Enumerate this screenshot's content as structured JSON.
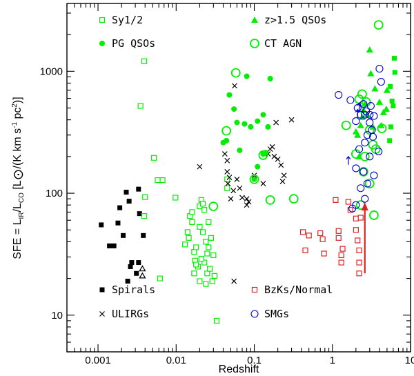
{
  "chart_data": {
    "type": "scatter",
    "title": "",
    "xlabel": "Redshift",
    "ylabel": "SFE  =  L_IR/L'_CO  [L_sun/(K km s^-1 pc^2)]",
    "ylabel_parts": {
      "prefix": "SFE  =  L",
      "sub1": "IR",
      "mid": "/L",
      "sub2": "CO",
      "suffix": "  [L",
      "unit": "/(K km s",
      "exp1": "-1",
      "pc": " pc",
      "exp2": "2",
      "close": ")]"
    },
    "x_scale": "log",
    "y_scale": "log",
    "xlim": [
      0.0004,
      10
    ],
    "ylim": [
      5,
      3600
    ],
    "x_ticks": [
      0.001,
      0.01,
      0.1,
      1,
      10
    ],
    "x_tick_labels": [
      "0.001",
      "0.01",
      "0.1",
      "1",
      "10"
    ],
    "y_ticks": [
      10,
      100,
      1000
    ],
    "y_tick_labels": [
      "10",
      "100",
      "1000"
    ],
    "colors": {
      "green": "#00ee00",
      "black": "#000000",
      "red": "#dd2222",
      "blue": "#0000cc"
    },
    "legend": [
      {
        "label": "Sy1/2",
        "marker": "open-square",
        "color": "#00ee00"
      },
      {
        "label": "z>1.5 QSOs",
        "marker": "filled-triangle",
        "color": "#00ee00"
      },
      {
        "label": "PG QSOs",
        "marker": "filled-circle",
        "color": "#00ee00"
      },
      {
        "label": "CT AGN",
        "marker": "big-open-circle",
        "color": "#00ee00"
      },
      {
        "label": "Spirals",
        "marker": "filled-square",
        "color": "#000000"
      },
      {
        "label": "BzKs/Normal",
        "marker": "open-square",
        "color": "#dd2222"
      },
      {
        "label": "ULIRGs",
        "marker": "cross",
        "color": "#000000"
      },
      {
        "label": "SMGs",
        "marker": "open-circle",
        "color": "#0000cc"
      }
    ],
    "series": [
      {
        "name": "Spirals",
        "marker": "filled-square",
        "color": "#000000",
        "points": [
          [
            0.0011,
            55
          ],
          [
            0.0014,
            37
          ],
          [
            0.0016,
            37
          ],
          [
            0.0018,
            57
          ],
          [
            0.0019,
            76
          ],
          [
            0.0021,
            45
          ],
          [
            0.0023,
            102
          ],
          [
            0.0025,
            86
          ],
          [
            0.0026,
            25
          ],
          [
            0.0027,
            27
          ],
          [
            0.0024,
            19
          ],
          [
            0.0033,
            108
          ],
          [
            0.0034,
            68
          ],
          [
            0.0031,
            22
          ],
          [
            0.0038,
            45
          ],
          [
            0.0033,
            27
          ]
        ]
      },
      {
        "name": "Spirals (lower limits)",
        "marker": "open-triangle",
        "color": "#000000",
        "points": [
          [
            0.0037,
            24
          ],
          [
            0.0037,
            21
          ]
        ]
      },
      {
        "name": "Sy1/2",
        "marker": "open-square",
        "color": "#00ee00",
        "points": [
          [
            0.0039,
            1210
          ],
          [
            0.0035,
            520
          ],
          [
            0.0052,
            195
          ],
          [
            0.0058,
            128
          ],
          [
            0.0067,
            128
          ],
          [
            0.004,
            93
          ],
          [
            0.0039,
            65
          ],
          [
            0.0062,
            20
          ],
          [
            0.0098,
            92
          ],
          [
            0.014,
            48
          ],
          [
            0.015,
            65
          ],
          [
            0.016,
            70
          ],
          [
            0.017,
            33
          ],
          [
            0.018,
            36
          ],
          [
            0.0145,
            43
          ],
          [
            0.013,
            38
          ],
          [
            0.016,
            58
          ],
          [
            0.0175,
            28
          ],
          [
            0.019,
            25
          ],
          [
            0.017,
            22
          ],
          [
            0.02,
            78
          ],
          [
            0.021,
            88
          ],
          [
            0.022,
            82
          ],
          [
            0.023,
            73
          ],
          [
            0.02,
            53
          ],
          [
            0.022,
            48
          ],
          [
            0.024,
            40
          ],
          [
            0.026,
            36
          ],
          [
            0.025,
            32
          ],
          [
            0.023,
            27
          ],
          [
            0.021,
            29
          ],
          [
            0.026,
            58
          ],
          [
            0.028,
            43
          ],
          [
            0.03,
            31
          ],
          [
            0.025,
            22
          ],
          [
            0.027,
            24
          ],
          [
            0.024,
            18
          ],
          [
            0.029,
            19
          ],
          [
            0.031,
            21
          ],
          [
            0.02,
            19
          ],
          [
            0.018,
            26
          ],
          [
            0.033,
            9
          ],
          [
            0.045,
            110
          ],
          [
            0.045,
            130
          ]
        ]
      },
      {
        "name": "ULIRGs",
        "marker": "cross",
        "color": "#000000",
        "points": [
          [
            0.056,
            760
          ],
          [
            0.02,
            165
          ],
          [
            0.042,
            210
          ],
          [
            0.045,
            185
          ],
          [
            0.045,
            150
          ],
          [
            0.048,
            135
          ],
          [
            0.046,
            120
          ],
          [
            0.05,
            90
          ],
          [
            0.054,
            105
          ],
          [
            0.06,
            130
          ],
          [
            0.065,
            110
          ],
          [
            0.07,
            92
          ],
          [
            0.08,
            80
          ],
          [
            0.085,
            85
          ],
          [
            0.1,
            140
          ],
          [
            0.13,
            120
          ],
          [
            0.15,
            210
          ],
          [
            0.16,
            230
          ],
          [
            0.17,
            240
          ],
          [
            0.18,
            200
          ],
          [
            0.2,
            190
          ],
          [
            0.22,
            170
          ],
          [
            0.23,
            125
          ],
          [
            0.24,
            140
          ],
          [
            0.19,
            380
          ],
          [
            0.3,
            400
          ],
          [
            0.08,
            90
          ],
          [
            0.055,
            19
          ]
        ]
      },
      {
        "name": "PG QSOs",
        "marker": "filled-circle",
        "color": "#00ee00",
        "points": [
          [
            0.04,
            260
          ],
          [
            0.044,
            270
          ],
          [
            0.048,
            640
          ],
          [
            0.055,
            490
          ],
          [
            0.06,
            380
          ],
          [
            0.065,
            225
          ],
          [
            0.075,
            370
          ],
          [
            0.08,
            910
          ],
          [
            0.09,
            350
          ],
          [
            0.11,
            390
          ],
          [
            0.13,
            440
          ],
          [
            0.15,
            350
          ],
          [
            0.16,
            870
          ],
          [
            0.13,
            210
          ],
          [
            0.14,
            215
          ],
          [
            0.1,
            130
          ],
          [
            0.11,
            165
          ]
        ]
      },
      {
        "name": "CT AGN",
        "marker": "big-open-circle",
        "color": "#00ee00",
        "points": [
          [
            0.058,
            970
          ],
          [
            0.044,
            325
          ],
          [
            0.03,
            78
          ],
          [
            0.1,
            130
          ],
          [
            0.13,
            205
          ],
          [
            0.16,
            88
          ],
          [
            0.32,
            90
          ],
          [
            1.5,
            360
          ],
          [
            2.0,
            210
          ],
          [
            2.2,
            590
          ],
          [
            2.4,
            650
          ],
          [
            2.7,
            560
          ],
          [
            3.0,
            330
          ],
          [
            3.6,
            230
          ],
          [
            3.9,
            2400
          ],
          [
            4.3,
            340
          ],
          [
            3.3,
            250
          ],
          [
            2.5,
            150
          ],
          [
            3.0,
            120
          ],
          [
            2.6,
            200
          ],
          [
            2.3,
            80
          ],
          [
            3.4,
            66
          ]
        ]
      },
      {
        "name": "z>1.5 QSOs",
        "marker": "filled-triangle",
        "color": "#00ee00",
        "points": [
          [
            2.0,
            320
          ],
          [
            2.1,
            300
          ],
          [
            2.2,
            200
          ],
          [
            2.3,
            360
          ],
          [
            2.4,
            420
          ],
          [
            2.5,
            480
          ],
          [
            2.6,
            540
          ],
          [
            2.8,
            440
          ],
          [
            3.0,
            1500
          ],
          [
            3.1,
            960
          ],
          [
            3.3,
            350
          ],
          [
            3.5,
            720
          ],
          [
            4.0,
            560
          ],
          [
            4.2,
            360
          ],
          [
            4.5,
            460
          ],
          [
            4.9,
            490
          ],
          [
            5.0,
            700
          ]
        ]
      },
      {
        "name": "z>1.5 QSOs (squares)",
        "marker": "filled-square",
        "color": "#00ee00",
        "points": [
          [
            5.5,
            750
          ],
          [
            5.8,
            570
          ],
          [
            6.0,
            520
          ],
          [
            6.2,
            1280
          ],
          [
            6.3,
            980
          ],
          [
            5.6,
            350
          ],
          [
            5.4,
            270
          ]
        ]
      },
      {
        "name": "BzKs/Normal",
        "marker": "open-square",
        "color": "#dd2222",
        "points": [
          [
            0.42,
            48
          ],
          [
            0.45,
            34
          ],
          [
            0.5,
            45
          ],
          [
            0.7,
            47
          ],
          [
            0.75,
            42
          ],
          [
            0.78,
            32
          ],
          [
            1.1,
            88
          ],
          [
            1.2,
            49
          ],
          [
            1.2,
            43
          ],
          [
            1.3,
            31
          ],
          [
            1.3,
            27
          ],
          [
            1.35,
            35
          ],
          [
            1.6,
            85
          ],
          [
            1.7,
            73
          ],
          [
            2.0,
            62
          ],
          [
            2.0,
            50
          ],
          [
            2.1,
            41
          ],
          [
            2.2,
            34
          ],
          [
            2.2,
            27
          ],
          [
            2.2,
            22
          ],
          [
            2.3,
            63
          ]
        ]
      },
      {
        "name": "SMGs",
        "marker": "open-circle",
        "color": "#0000cc",
        "points": [
          [
            1.2,
            640
          ],
          [
            1.7,
            580
          ],
          [
            2.1,
            500
          ],
          [
            2.5,
            540
          ],
          [
            2.0,
            390
          ],
          [
            2.3,
            440
          ],
          [
            2.6,
            440
          ],
          [
            2.7,
            470
          ],
          [
            3.0,
            440
          ],
          [
            3.1,
            520
          ],
          [
            3.4,
            430
          ],
          [
            3.2,
            330
          ],
          [
            2.2,
            230
          ],
          [
            2.6,
            260
          ],
          [
            2.8,
            300
          ],
          [
            3.0,
            200
          ],
          [
            2.0,
            160
          ],
          [
            2.5,
            150
          ],
          [
            2.8,
            120
          ],
          [
            3.4,
            140
          ],
          [
            2.3,
            110
          ],
          [
            2.6,
            90
          ],
          [
            2.0,
            80
          ],
          [
            1.8,
            75
          ],
          [
            3.0,
            380
          ],
          [
            3.3,
            290
          ],
          [
            4.2,
            820
          ],
          [
            4.0,
            1050
          ],
          [
            3.9,
            220
          ]
        ]
      },
      {
        "name": "SMGs (lower limits)",
        "marker": "up-arrow",
        "color": "#0000cc",
        "points": [
          [
            1.6,
            185
          ],
          [
            2.1,
            450
          ],
          [
            2.2,
            510
          ]
        ]
      }
    ],
    "annotations": [
      {
        "type": "arrow-up",
        "color": "#dd2222",
        "x": 2.6,
        "y_from": 22,
        "y_to": 80
      }
    ]
  }
}
